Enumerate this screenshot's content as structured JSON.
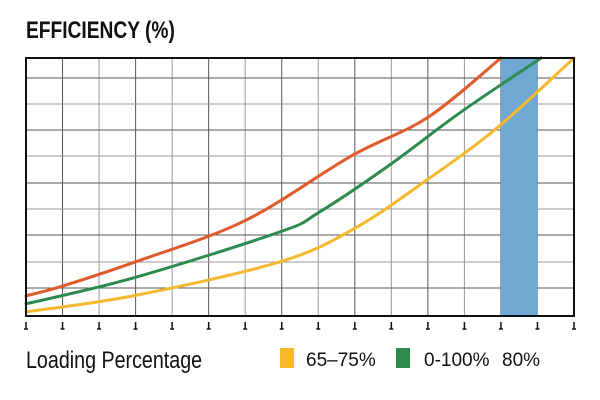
{
  "chart_data": {
    "type": "line",
    "title": "EFFICIENCY (%)",
    "xlabel": "Loading Percentage",
    "ylabel": "",
    "xlim": [
      0,
      15
    ],
    "ylim": [
      0,
      10
    ],
    "grid": true,
    "legend_placement": "bottom",
    "x_tick_count": 16,
    "series": [
      {
        "color": "#e05a2b",
        "points": [
          [
            0,
            0.78
          ],
          [
            1,
            1.16
          ],
          [
            3,
            2.1
          ],
          [
            6,
            3.7
          ],
          [
            8.9,
            6.2
          ],
          [
            11,
            7.7
          ],
          [
            13,
            10
          ]
        ]
      },
      {
        "color": "#2e8b4e",
        "points": [
          [
            0,
            0.47
          ],
          [
            3,
            1.5
          ],
          [
            6.95,
            3.26
          ],
          [
            8,
            4.0
          ],
          [
            9.9,
            5.8
          ],
          [
            11.9,
            7.9
          ],
          [
            14.1,
            10
          ]
        ]
      },
      {
        "color": "#f5b82e",
        "points": [
          [
            0,
            0.16
          ],
          [
            3,
            0.8
          ],
          [
            6.95,
            2.1
          ],
          [
            9,
            3.4
          ],
          [
            11,
            5.3
          ],
          [
            12.9,
            7.3
          ],
          [
            15,
            10
          ]
        ]
      }
    ],
    "highlight_band": {
      "x": [
        13,
        14
      ],
      "color": "#6fa8d3"
    },
    "legend": [
      {
        "label": "65–75%",
        "color": "#f5b82e"
      },
      {
        "label": "0-100%",
        "color": "#2e8b4e"
      },
      {
        "label": "80%",
        "color": ""
      }
    ]
  }
}
